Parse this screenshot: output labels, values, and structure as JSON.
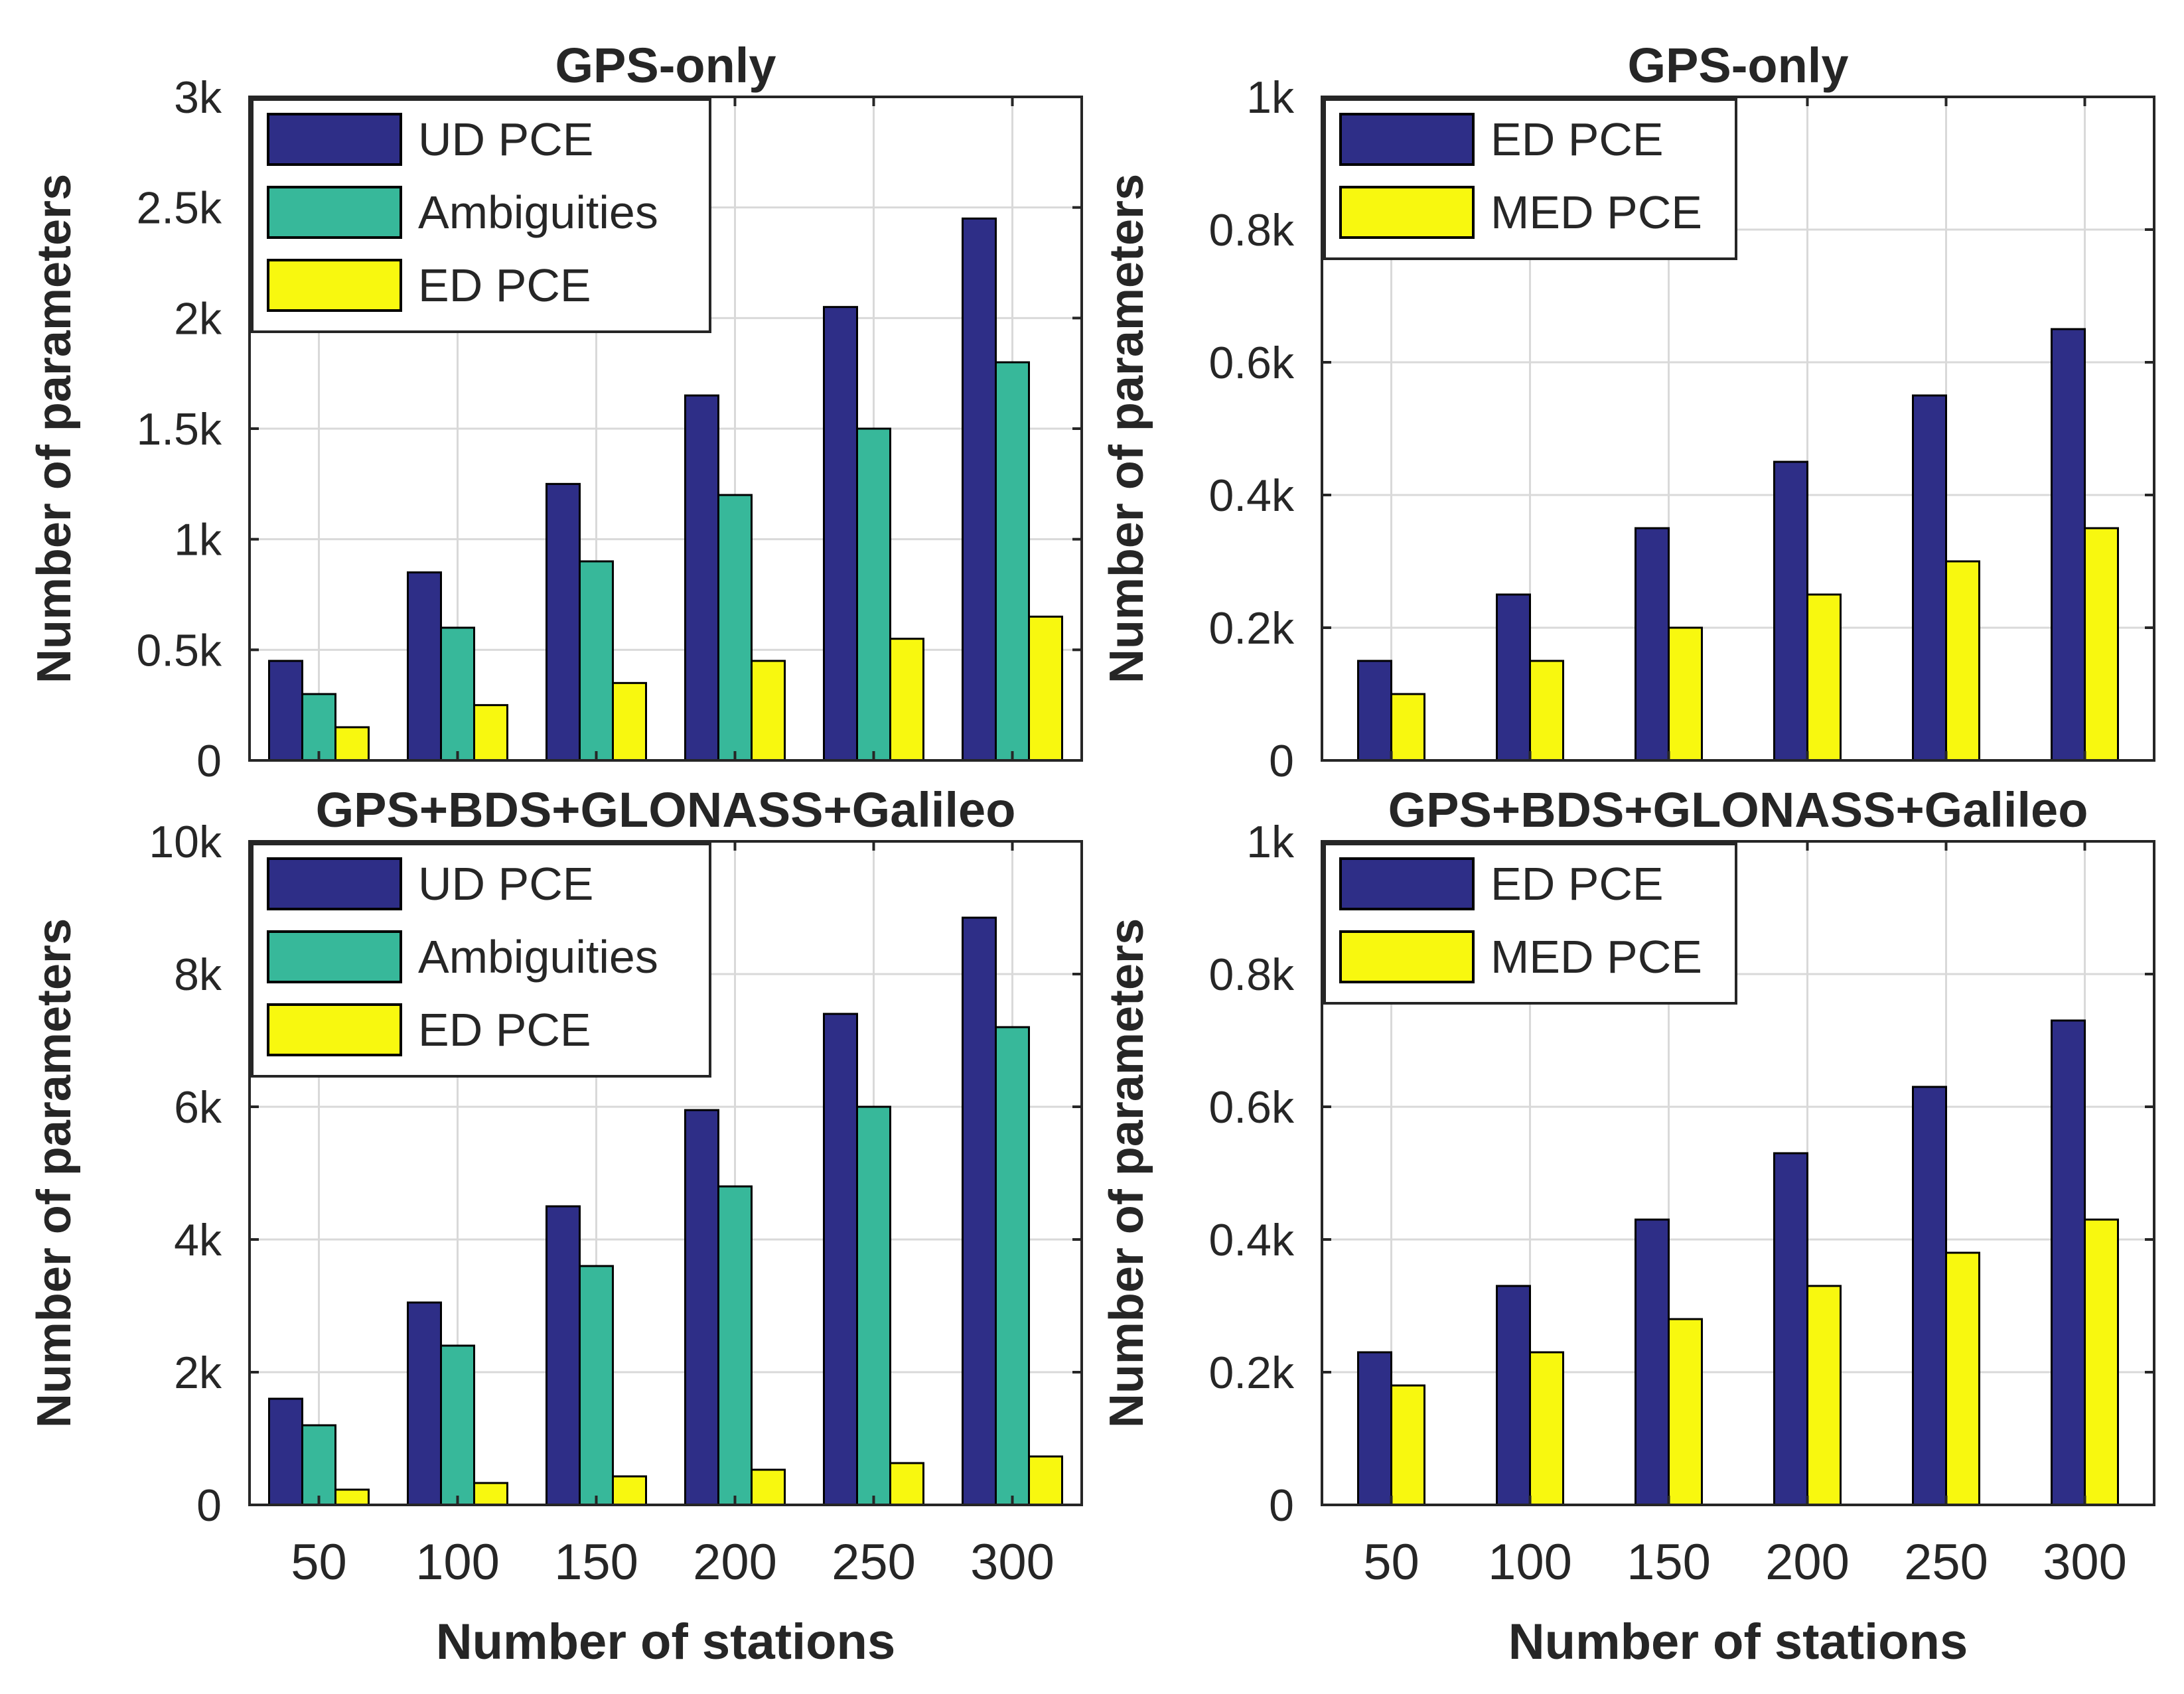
{
  "figure": {
    "xlabel": "Number of stations",
    "ylabel": "Number of parameters"
  },
  "colors": {
    "ud_pce": "#2e2e87",
    "ambiguities": "#37b89a",
    "ed_pce_yellow": "#f8f80f",
    "ed_pce_navy": "#2e2e87",
    "med_pce": "#f8f80f",
    "grid": "#d9d9d9",
    "axis": "#262626"
  },
  "chart_data": [
    {
      "type": "bar",
      "title": "GPS-only",
      "categories": [
        "50",
        "100",
        "150",
        "200",
        "250",
        "300"
      ],
      "ylim": [
        0,
        3000
      ],
      "yticks": [
        0,
        500,
        1000,
        1500,
        2000,
        2500,
        3000
      ],
      "ytick_labels": [
        "0",
        "0.5k",
        "1k",
        "1.5k",
        "2k",
        "2.5k",
        "3k"
      ],
      "show_xticklabels": false,
      "show_xlabel": false,
      "legend": "top-left",
      "grid": true,
      "series": [
        {
          "name": "UD PCE",
          "color_key": "ud_pce",
          "values": [
            450,
            850,
            1250,
            1650,
            2050,
            2450
          ]
        },
        {
          "name": "Ambiguities",
          "color_key": "ambiguities",
          "values": [
            300,
            600,
            900,
            1200,
            1500,
            1800
          ]
        },
        {
          "name": "ED PCE",
          "color_key": "ed_pce_yellow",
          "values": [
            150,
            250,
            350,
            450,
            550,
            650
          ]
        }
      ]
    },
    {
      "type": "bar",
      "title": "GPS-only",
      "categories": [
        "50",
        "100",
        "150",
        "200",
        "250",
        "300"
      ],
      "ylim": [
        0,
        1000
      ],
      "yticks": [
        0,
        200,
        400,
        600,
        800,
        1000
      ],
      "ytick_labels": [
        "0",
        "0.2k",
        "0.4k",
        "0.6k",
        "0.8k",
        "1k"
      ],
      "show_xticklabels": false,
      "show_xlabel": false,
      "legend": "top-left",
      "grid": true,
      "series": [
        {
          "name": "ED PCE",
          "color_key": "ed_pce_navy",
          "values": [
            150,
            250,
            350,
            450,
            550,
            650
          ]
        },
        {
          "name": "MED PCE",
          "color_key": "med_pce",
          "values": [
            100,
            150,
            200,
            250,
            300,
            350
          ]
        }
      ]
    },
    {
      "type": "bar",
      "title": "GPS+BDS+GLONASS+Galileo",
      "categories": [
        "50",
        "100",
        "150",
        "200",
        "250",
        "300"
      ],
      "ylim": [
        0,
        10000
      ],
      "yticks": [
        0,
        2000,
        4000,
        6000,
        8000,
        10000
      ],
      "ytick_labels": [
        "0",
        "2k",
        "4k",
        "6k",
        "8k",
        "10k"
      ],
      "show_xticklabels": true,
      "show_xlabel": true,
      "legend": "top-left",
      "grid": true,
      "series": [
        {
          "name": "UD PCE",
          "color_key": "ud_pce",
          "values": [
            1600,
            3050,
            4500,
            5950,
            7400,
            8850
          ]
        },
        {
          "name": "Ambiguities",
          "color_key": "ambiguities",
          "values": [
            1200,
            2400,
            3600,
            4800,
            6000,
            7200
          ]
        },
        {
          "name": "ED PCE",
          "color_key": "ed_pce_yellow",
          "values": [
            230,
            330,
            430,
            530,
            630,
            730
          ]
        }
      ]
    },
    {
      "type": "bar",
      "title": "GPS+BDS+GLONASS+Galileo",
      "categories": [
        "50",
        "100",
        "150",
        "200",
        "250",
        "300"
      ],
      "ylim": [
        0,
        1000
      ],
      "yticks": [
        0,
        200,
        400,
        600,
        800,
        1000
      ],
      "ytick_labels": [
        "0",
        "0.2k",
        "0.4k",
        "0.6k",
        "0.8k",
        "1k"
      ],
      "show_xticklabels": true,
      "show_xlabel": true,
      "legend": "top-left",
      "grid": true,
      "series": [
        {
          "name": "ED PCE",
          "color_key": "ed_pce_navy",
          "values": [
            230,
            330,
            430,
            530,
            630,
            730
          ]
        },
        {
          "name": "MED PCE",
          "color_key": "med_pce",
          "values": [
            180,
            230,
            280,
            330,
            380,
            430
          ]
        }
      ]
    }
  ]
}
